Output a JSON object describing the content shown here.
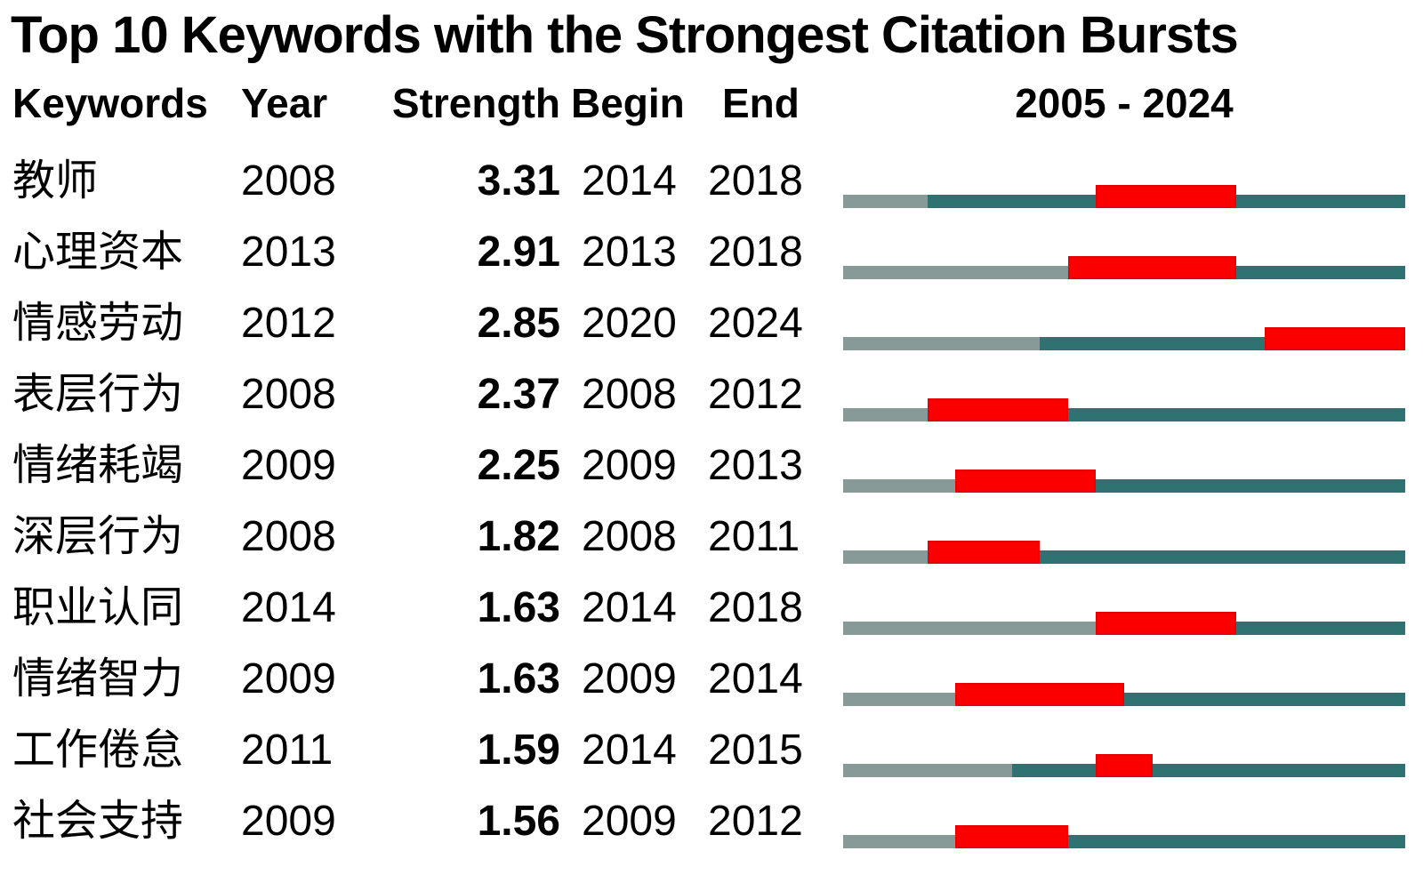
{
  "chart_data": {
    "type": "table",
    "title": "Top 10 Keywords with the Strongest Citation Bursts",
    "columns": [
      "Keywords",
      "Year",
      "Strength",
      "Begin",
      "End",
      "2005 - 2024"
    ],
    "timeline": {
      "start_year": 2005,
      "end_year": 2024
    },
    "legend_note": "gray = before first appearance, teal = keyword active, red = citation burst interval",
    "rows": [
      {
        "keyword": "教师",
        "year": 2008,
        "strength": "3.31",
        "begin": 2014,
        "end": 2018
      },
      {
        "keyword": "心理资本",
        "year": 2013,
        "strength": "2.91",
        "begin": 2013,
        "end": 2018
      },
      {
        "keyword": "情感劳动",
        "year": 2012,
        "strength": "2.85",
        "begin": 2020,
        "end": 2024
      },
      {
        "keyword": "表层行为",
        "year": 2008,
        "strength": "2.37",
        "begin": 2008,
        "end": 2012
      },
      {
        "keyword": "情绪耗竭",
        "year": 2009,
        "strength": "2.25",
        "begin": 2009,
        "end": 2013
      },
      {
        "keyword": "深层行为",
        "year": 2008,
        "strength": "1.82",
        "begin": 2008,
        "end": 2011
      },
      {
        "keyword": "职业认同",
        "year": 2014,
        "strength": "1.63",
        "begin": 2014,
        "end": 2018
      },
      {
        "keyword": "情绪智力",
        "year": 2009,
        "strength": "1.63",
        "begin": 2009,
        "end": 2014
      },
      {
        "keyword": "工作倦怠",
        "year": 2011,
        "strength": "1.59",
        "begin": 2014,
        "end": 2015
      },
      {
        "keyword": "社会支持",
        "year": 2009,
        "strength": "1.56",
        "begin": 2009,
        "end": 2012
      }
    ]
  },
  "colors": {
    "pre_appearance": "#879A97",
    "active": "#2E7372",
    "burst": "#FB0000"
  }
}
